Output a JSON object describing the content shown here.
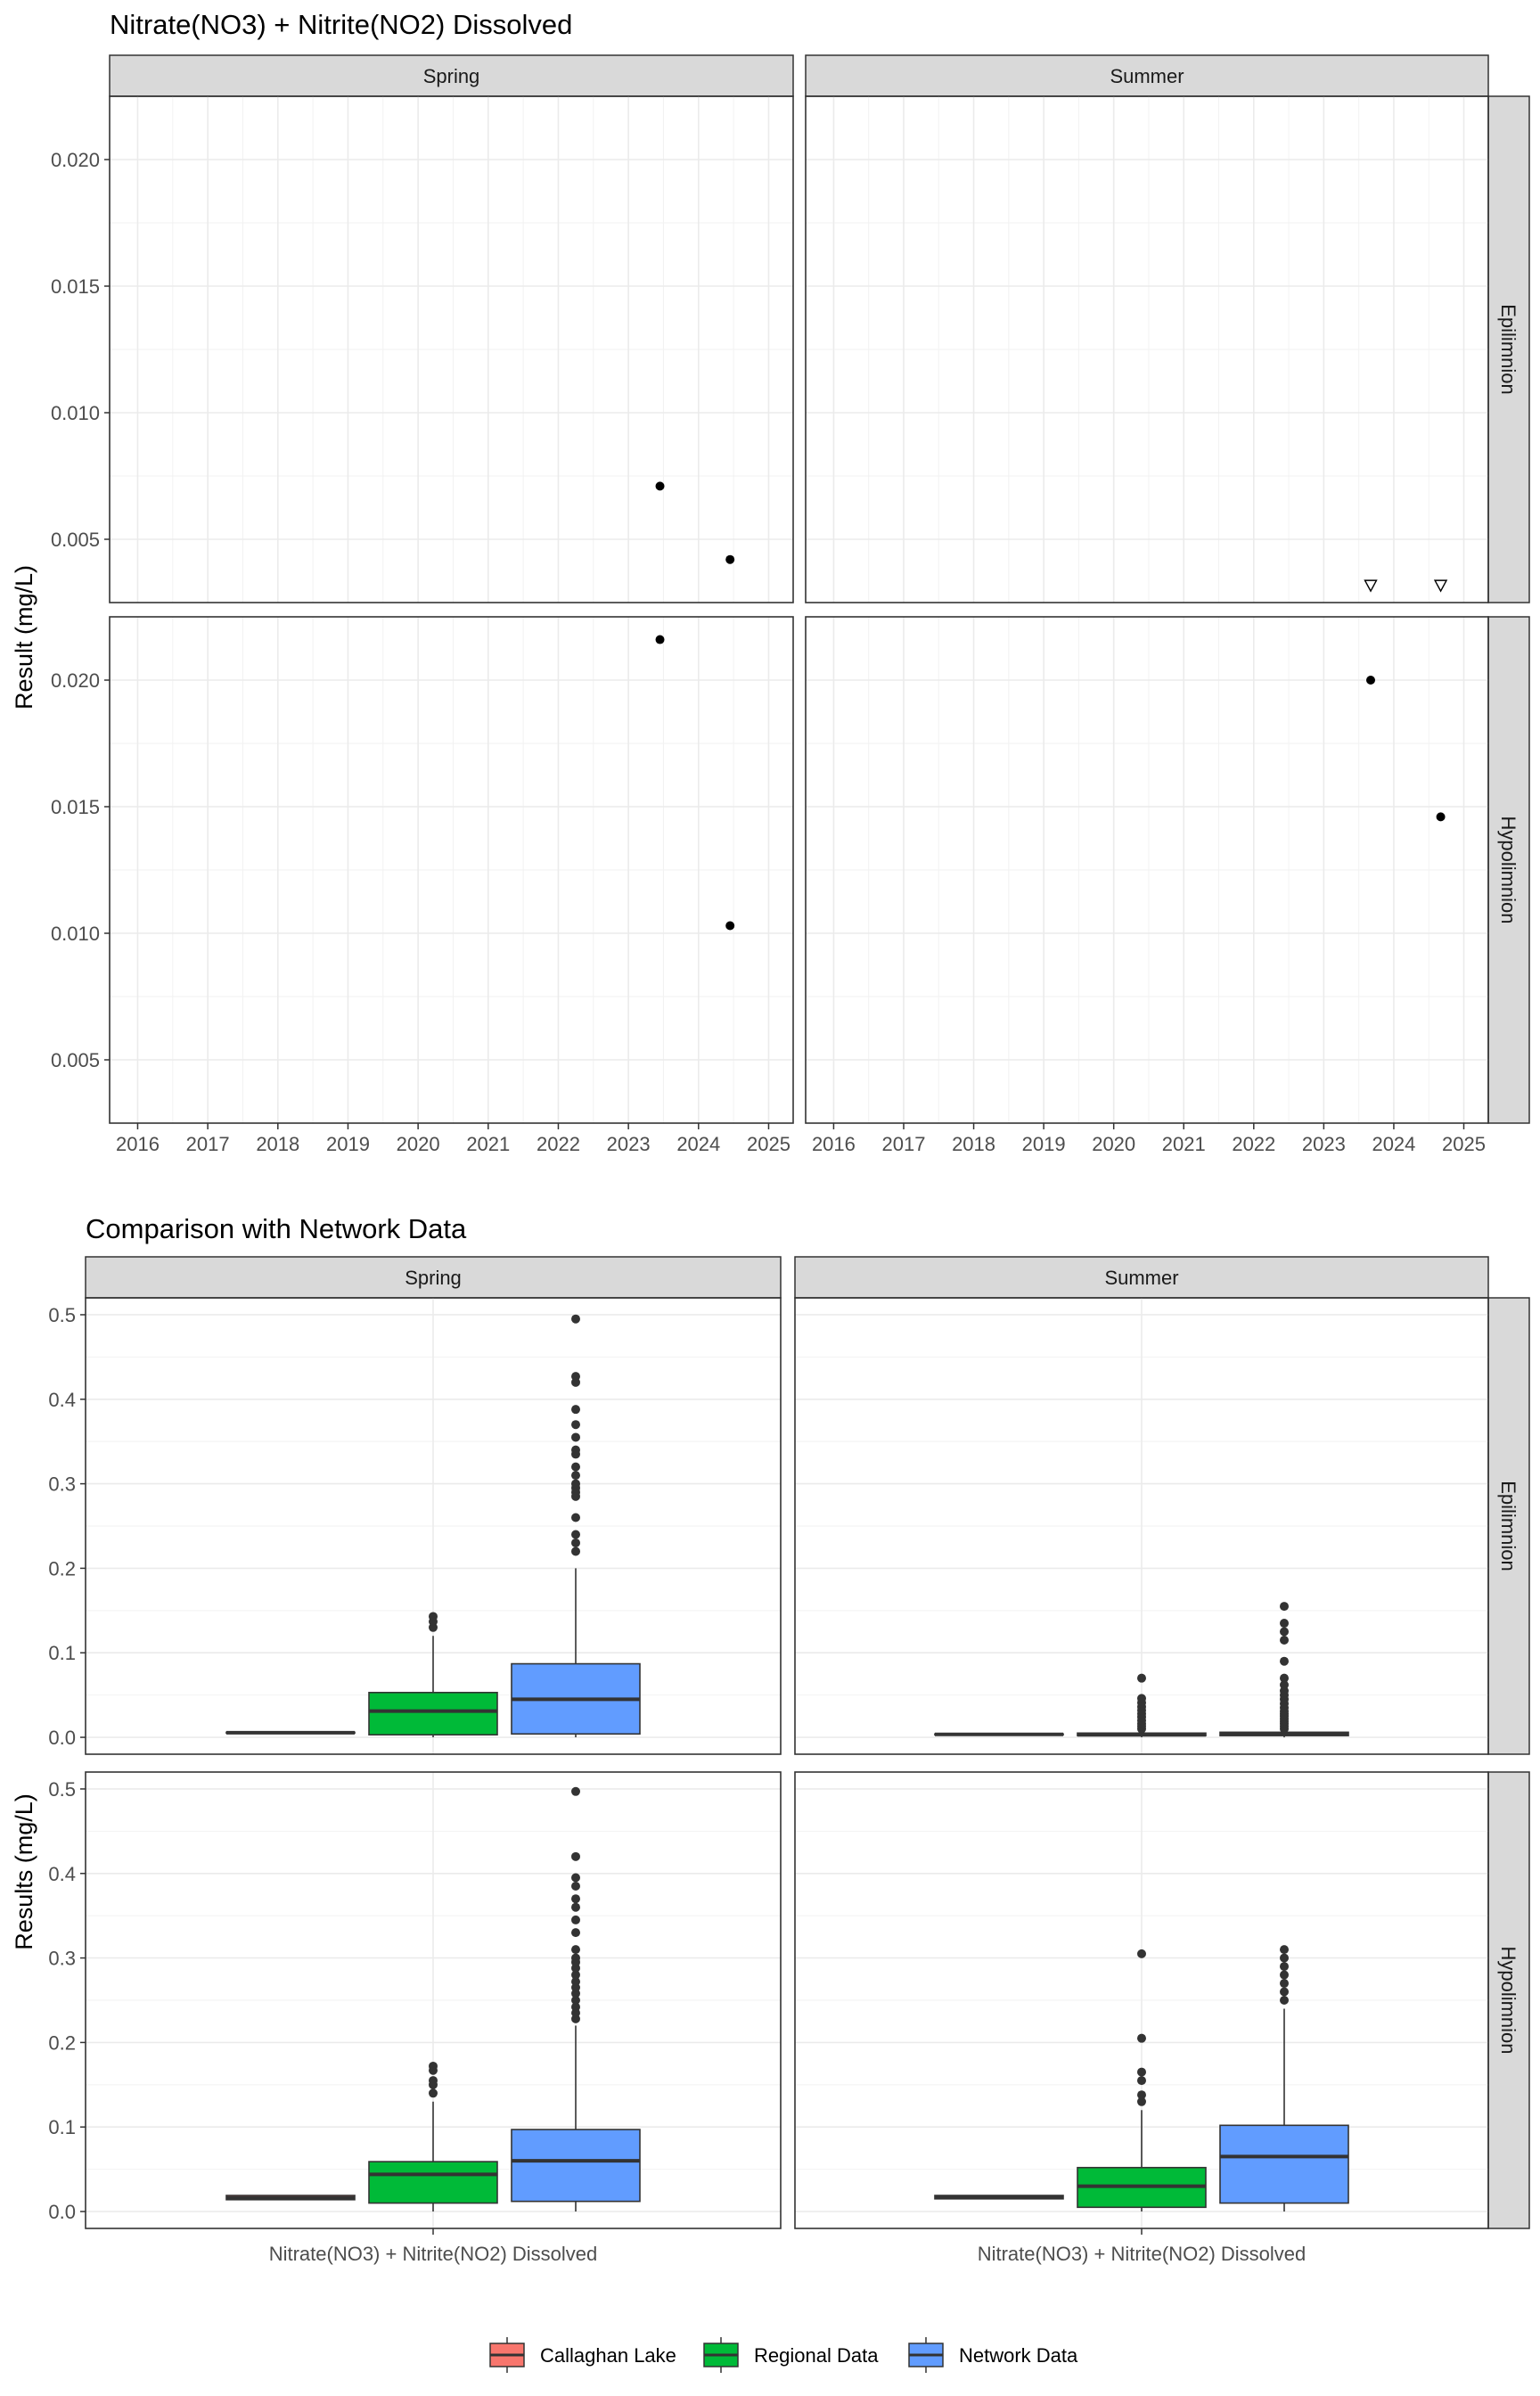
{
  "chart_data": [
    {
      "type": "scatter",
      "title": "Nitrate(NO3) + Nitrite(NO2) Dissolved",
      "ylabel": "Result (mg/L)",
      "xlabel": "",
      "x_ticks": [
        "2016",
        "2017",
        "2018",
        "2019",
        "2020",
        "2021",
        "2022",
        "2023",
        "2024",
        "2025"
      ],
      "y_ticks": [
        "0.005",
        "0.010",
        "0.015",
        "0.020"
      ],
      "xlim": [
        2015.6,
        2025.35
      ],
      "ylim": [
        0.0025,
        0.0225
      ],
      "grid": true,
      "col_facets": [
        "Spring",
        "Summer"
      ],
      "row_facets": [
        "Epilimnion",
        "Hypolimnion"
      ],
      "panels": [
        {
          "col": "Spring",
          "row": "Epilimnion",
          "points": [
            {
              "x": 2023.45,
              "y": 0.0071,
              "shape": "circle"
            },
            {
              "x": 2024.45,
              "y": 0.0042,
              "shape": "circle"
            }
          ]
        },
        {
          "col": "Summer",
          "row": "Epilimnion",
          "points": [
            {
              "x": 2023.67,
              "y": 0.0032,
              "shape": "triangle-down"
            },
            {
              "x": 2024.67,
              "y": 0.0032,
              "shape": "triangle-down"
            }
          ]
        },
        {
          "col": "Spring",
          "row": "Hypolimnion",
          "points": [
            {
              "x": 2023.45,
              "y": 0.0216,
              "shape": "circle"
            },
            {
              "x": 2024.45,
              "y": 0.0103,
              "shape": "circle"
            }
          ]
        },
        {
          "col": "Summer",
          "row": "Hypolimnion",
          "points": [
            {
              "x": 2023.67,
              "y": 0.02,
              "shape": "circle"
            },
            {
              "x": 2024.67,
              "y": 0.0146,
              "shape": "circle"
            }
          ]
        }
      ]
    },
    {
      "type": "box",
      "title": "Comparison with Network Data",
      "ylabel": "Results (mg/L)",
      "xlabel": "",
      "x_category": "Nitrate(NO3) + Nitrite(NO2) Dissolved",
      "y_ticks": [
        "0.0",
        "0.1",
        "0.2",
        "0.3",
        "0.4",
        "0.5"
      ],
      "ylim": [
        -0.02,
        0.52
      ],
      "grid": true,
      "col_facets": [
        "Spring",
        "Summer"
      ],
      "row_facets": [
        "Epilimnion",
        "Hypolimnion"
      ],
      "legend": {
        "position": "bottom",
        "entries": [
          {
            "name": "Callaghan Lake",
            "color": "#F8766D"
          },
          {
            "name": "Regional Data",
            "color": "#00BA38"
          },
          {
            "name": "Network Data",
            "color": "#619CFF"
          }
        ]
      },
      "panels": [
        {
          "col": "Spring",
          "row": "Epilimnion",
          "boxes": [
            {
              "series": "Callaghan Lake",
              "q1": 0.005,
              "median": 0.0055,
              "q3": 0.006,
              "whisker_low": 0.005,
              "whisker_high": 0.006,
              "outliers": []
            },
            {
              "series": "Regional Data",
              "q1": 0.003,
              "median": 0.031,
              "q3": 0.053,
              "whisker_low": 0.0,
              "whisker_high": 0.12,
              "outliers": [
                0.13,
                0.137,
                0.143
              ]
            },
            {
              "series": "Network Data",
              "q1": 0.004,
              "median": 0.045,
              "q3": 0.087,
              "whisker_low": 0.0,
              "whisker_high": 0.2,
              "outliers": [
                0.22,
                0.23,
                0.24,
                0.26,
                0.285,
                0.29,
                0.295,
                0.3,
                0.31,
                0.32,
                0.335,
                0.34,
                0.355,
                0.37,
                0.388,
                0.42,
                0.427,
                0.495
              ]
            }
          ]
        },
        {
          "col": "Summer",
          "row": "Epilimnion",
          "boxes": [
            {
              "series": "Callaghan Lake",
              "q1": 0.003,
              "median": 0.0035,
              "q3": 0.004,
              "whisker_low": 0.003,
              "whisker_high": 0.004,
              "outliers": []
            },
            {
              "series": "Regional Data",
              "q1": 0.002,
              "median": 0.003,
              "q3": 0.005,
              "whisker_low": 0.0,
              "whisker_high": 0.008,
              "outliers": [
                0.01,
                0.013,
                0.016,
                0.02,
                0.024,
                0.028,
                0.032,
                0.036,
                0.041,
                0.046,
                0.07
              ]
            },
            {
              "series": "Network Data",
              "q1": 0.002,
              "median": 0.004,
              "q3": 0.006,
              "whisker_low": 0.0,
              "whisker_high": 0.009,
              "outliers": [
                0.01,
                0.013,
                0.016,
                0.019,
                0.022,
                0.025,
                0.028,
                0.031,
                0.035,
                0.04,
                0.045,
                0.05,
                0.055,
                0.062,
                0.07,
                0.09,
                0.115,
                0.125,
                0.135,
                0.155
              ]
            }
          ]
        },
        {
          "col": "Spring",
          "row": "Hypolimnion",
          "boxes": [
            {
              "series": "Callaghan Lake",
              "q1": 0.014,
              "median": 0.016,
              "q3": 0.019,
              "whisker_low": 0.014,
              "whisker_high": 0.019,
              "outliers": []
            },
            {
              "series": "Regional Data",
              "q1": 0.01,
              "median": 0.044,
              "q3": 0.059,
              "whisker_low": 0.0,
              "whisker_high": 0.13,
              "outliers": [
                0.14,
                0.15,
                0.155,
                0.167,
                0.172
              ]
            },
            {
              "series": "Network Data",
              "q1": 0.012,
              "median": 0.06,
              "q3": 0.097,
              "whisker_low": 0.0,
              "whisker_high": 0.22,
              "outliers": [
                0.228,
                0.235,
                0.242,
                0.25,
                0.258,
                0.265,
                0.272,
                0.28,
                0.288,
                0.295,
                0.3,
                0.31,
                0.33,
                0.345,
                0.36,
                0.37,
                0.385,
                0.395,
                0.42,
                0.497
              ]
            }
          ]
        },
        {
          "col": "Summer",
          "row": "Hypolimnion",
          "boxes": [
            {
              "series": "Callaghan Lake",
              "q1": 0.015,
              "median": 0.017,
              "q3": 0.019,
              "whisker_low": 0.015,
              "whisker_high": 0.019,
              "outliers": []
            },
            {
              "series": "Regional Data",
              "q1": 0.005,
              "median": 0.03,
              "q3": 0.052,
              "whisker_low": 0.0,
              "whisker_high": 0.12,
              "outliers": [
                0.13,
                0.138,
                0.155,
                0.165,
                0.205,
                0.305
              ]
            },
            {
              "series": "Network Data",
              "q1": 0.01,
              "median": 0.065,
              "q3": 0.102,
              "whisker_low": 0.0,
              "whisker_high": 0.24,
              "outliers": [
                0.25,
                0.26,
                0.27,
                0.28,
                0.29,
                0.3,
                0.31
              ]
            }
          ]
        }
      ]
    }
  ]
}
